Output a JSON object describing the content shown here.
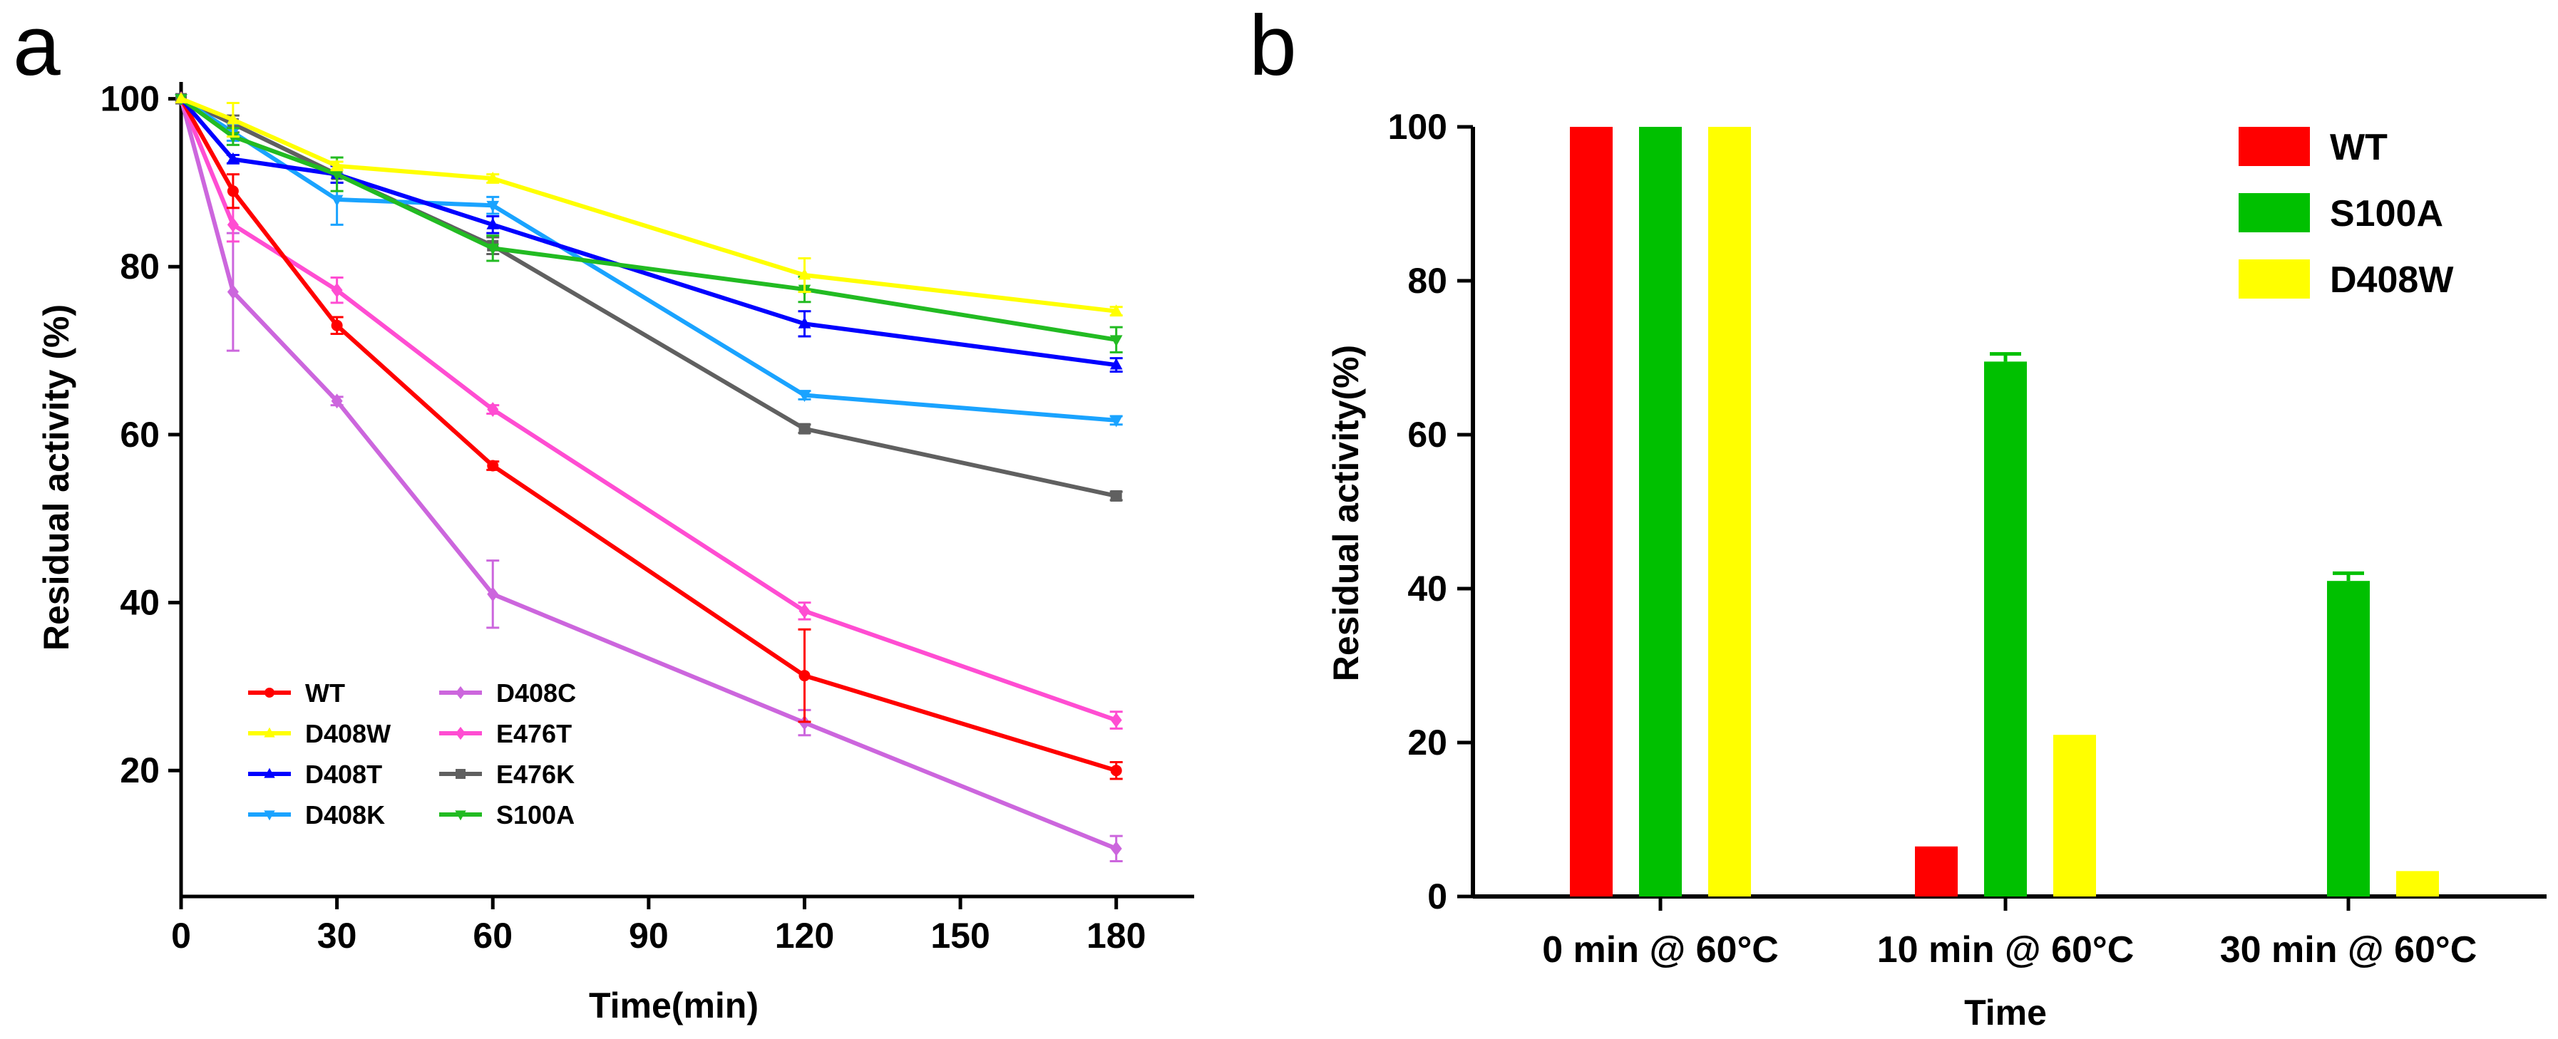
{
  "panels": {
    "a": "a",
    "b": "b"
  },
  "chart_data": [
    {
      "type": "line",
      "panel": "a",
      "xlabel": "Time(min)",
      "ylabel": "Residual activity (%)",
      "xlim": [
        0,
        195
      ],
      "ylim": [
        5,
        102
      ],
      "xticks": [
        0,
        30,
        60,
        90,
        120,
        150,
        180
      ],
      "yticks": [
        20,
        40,
        60,
        80,
        100
      ],
      "x": [
        0,
        10,
        30,
        60,
        120,
        180
      ],
      "series": [
        {
          "name": "WT",
          "color": "#ff0000",
          "marker": "circle",
          "values": [
            100,
            89,
            73,
            56.3,
            31.3,
            20
          ],
          "errors": [
            0,
            2,
            1,
            0.5,
            5.5,
            1
          ]
        },
        {
          "name": "D408W",
          "color": "#ffff00",
          "marker": "triangle-up",
          "values": [
            100,
            97.5,
            92,
            90.5,
            79,
            74.7
          ],
          "errors": [
            0,
            2,
            0.5,
            0.5,
            2,
            0.5
          ]
        },
        {
          "name": "D408T",
          "color": "#0000ff",
          "marker": "triangle-up",
          "values": [
            100,
            92.8,
            91,
            85,
            73.2,
            68.3
          ],
          "errors": [
            0,
            0.5,
            1,
            1,
            1.5,
            0.8
          ]
        },
        {
          "name": "D408K",
          "color": "#1aa3ff",
          "marker": "triangle-down",
          "values": [
            100,
            96,
            88,
            87.3,
            64.7,
            61.7
          ],
          "errors": [
            0,
            1,
            3,
            1,
            0.5,
            0.5
          ]
        },
        {
          "name": "D408C",
          "color": "#cc66dd",
          "marker": "diamond",
          "values": [
            100,
            77,
            64,
            41,
            25.7,
            10.7
          ],
          "errors": [
            0,
            7,
            0.5,
            4,
            1.5,
            1.5
          ]
        },
        {
          "name": "E476T",
          "color": "#ff4dd2",
          "marker": "diamond",
          "values": [
            100,
            85,
            77.2,
            63,
            39,
            26
          ],
          "errors": [
            0,
            2,
            1.5,
            0.5,
            1,
            1
          ]
        },
        {
          "name": "E476K",
          "color": "#606060",
          "marker": "square",
          "values": [
            100,
            97,
            91,
            82.5,
            60.7,
            52.7
          ],
          "errors": [
            0,
            1,
            1,
            1,
            0.5,
            0.5
          ]
        },
        {
          "name": "S100A",
          "color": "#22bb22",
          "marker": "triangle-down",
          "values": [
            100,
            95.5,
            91,
            82.2,
            77.3,
            71.3
          ],
          "errors": [
            0,
            1,
            2,
            1.5,
            1.5,
            1.5
          ]
        }
      ]
    },
    {
      "type": "bar",
      "panel": "b",
      "xlabel": "Time",
      "ylabel": "Residual activity(%)",
      "ylim": [
        0,
        100
      ],
      "yticks": [
        0,
        20,
        40,
        60,
        80,
        100
      ],
      "categories": [
        "0 min @ 60°C",
        "10 min @ 60°C",
        "30 min @ 60°C"
      ],
      "series": [
        {
          "name": "WT",
          "color": "#ff0000",
          "values": [
            100,
            6.5,
            0
          ],
          "errors": [
            0,
            0,
            0
          ]
        },
        {
          "name": "S100A",
          "color": "#00c000",
          "values": [
            100,
            69.5,
            41
          ],
          "errors": [
            0,
            1,
            1
          ]
        },
        {
          "name": "D408W",
          "color": "#ffff00",
          "values": [
            100,
            21,
            3.3
          ],
          "errors": [
            0,
            0,
            0
          ]
        }
      ]
    }
  ]
}
